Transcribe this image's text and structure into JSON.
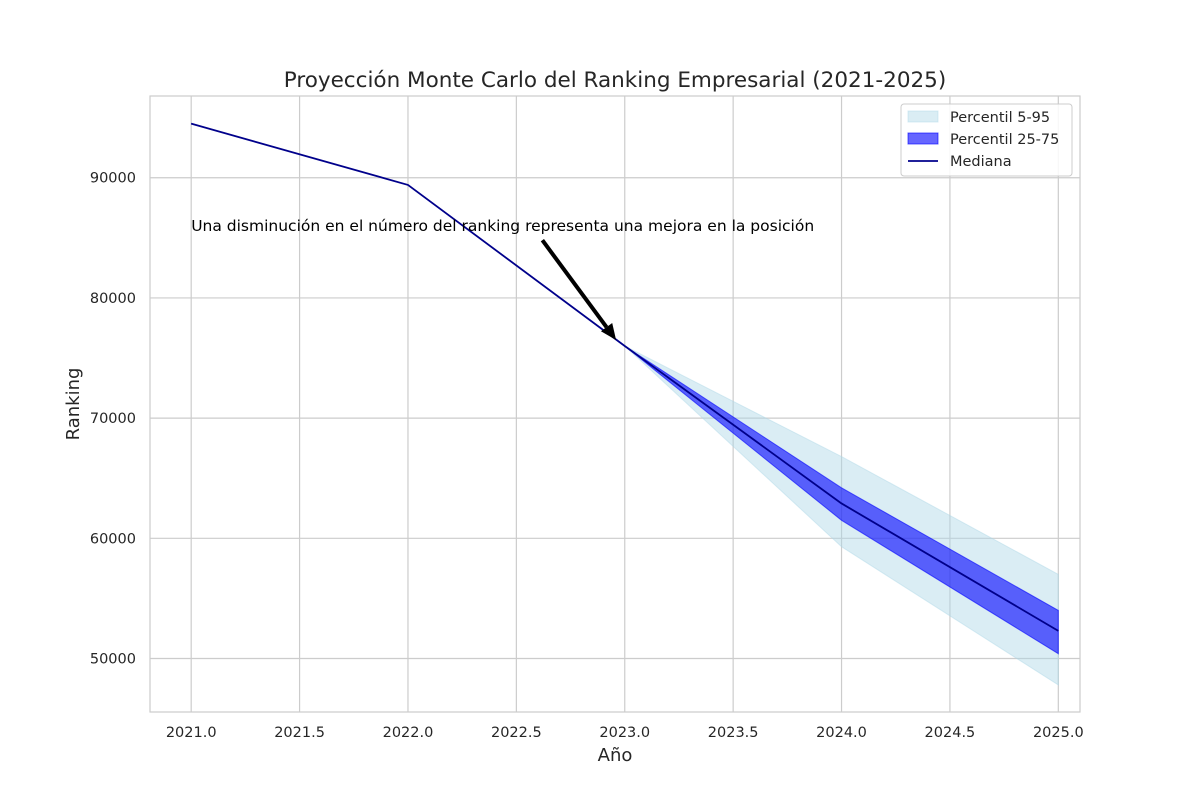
{
  "chart_data": {
    "type": "area",
    "title": "Proyección Monte Carlo del Ranking Empresarial (2021-2025)",
    "xlabel": "Año",
    "ylabel": "Ranking",
    "xlim": [
      2020.81,
      2025.1
    ],
    "ylim": [
      45550,
      96800
    ],
    "xticks": [
      2021.0,
      2021.5,
      2022.0,
      2022.5,
      2023.0,
      2023.5,
      2024.0,
      2024.5,
      2025.0
    ],
    "xtick_labels": [
      "2021.0",
      "2021.5",
      "2022.0",
      "2022.5",
      "2023.0",
      "2023.5",
      "2024.0",
      "2024.5",
      "2025.0"
    ],
    "yticks": [
      50000,
      60000,
      70000,
      80000,
      90000
    ],
    "ytick_labels": [
      "50000",
      "60000",
      "70000",
      "80000",
      "90000"
    ],
    "grid": true,
    "legend_position": "top-right",
    "x": [
      2021,
      2022,
      2023,
      2024,
      2025
    ],
    "series": [
      {
        "name": "Percentil 5-95",
        "kind": "band",
        "color": "#add8e6",
        "lower": [
          94500,
          89400,
          76000,
          59300,
          47800
        ],
        "upper": [
          94500,
          89400,
          76000,
          66800,
          57000
        ]
      },
      {
        "name": "Percentil 25-75",
        "kind": "band",
        "color": "#0000ff",
        "lower": [
          94500,
          89400,
          76000,
          61500,
          50400
        ],
        "upper": [
          94500,
          89400,
          76000,
          64200,
          54000
        ]
      },
      {
        "name": "Mediana",
        "kind": "line",
        "color": "#00008b",
        "values": [
          94500,
          89400,
          76000,
          62900,
          52300
        ]
      }
    ],
    "annotation": {
      "text": "Una disminución en el número del ranking representa una mejora en la posición",
      "text_at": [
        2021.0,
        86000
      ],
      "arrow_from": [
        2022.62,
        84800
      ],
      "arrow_to": [
        2022.96,
        76500
      ]
    }
  }
}
